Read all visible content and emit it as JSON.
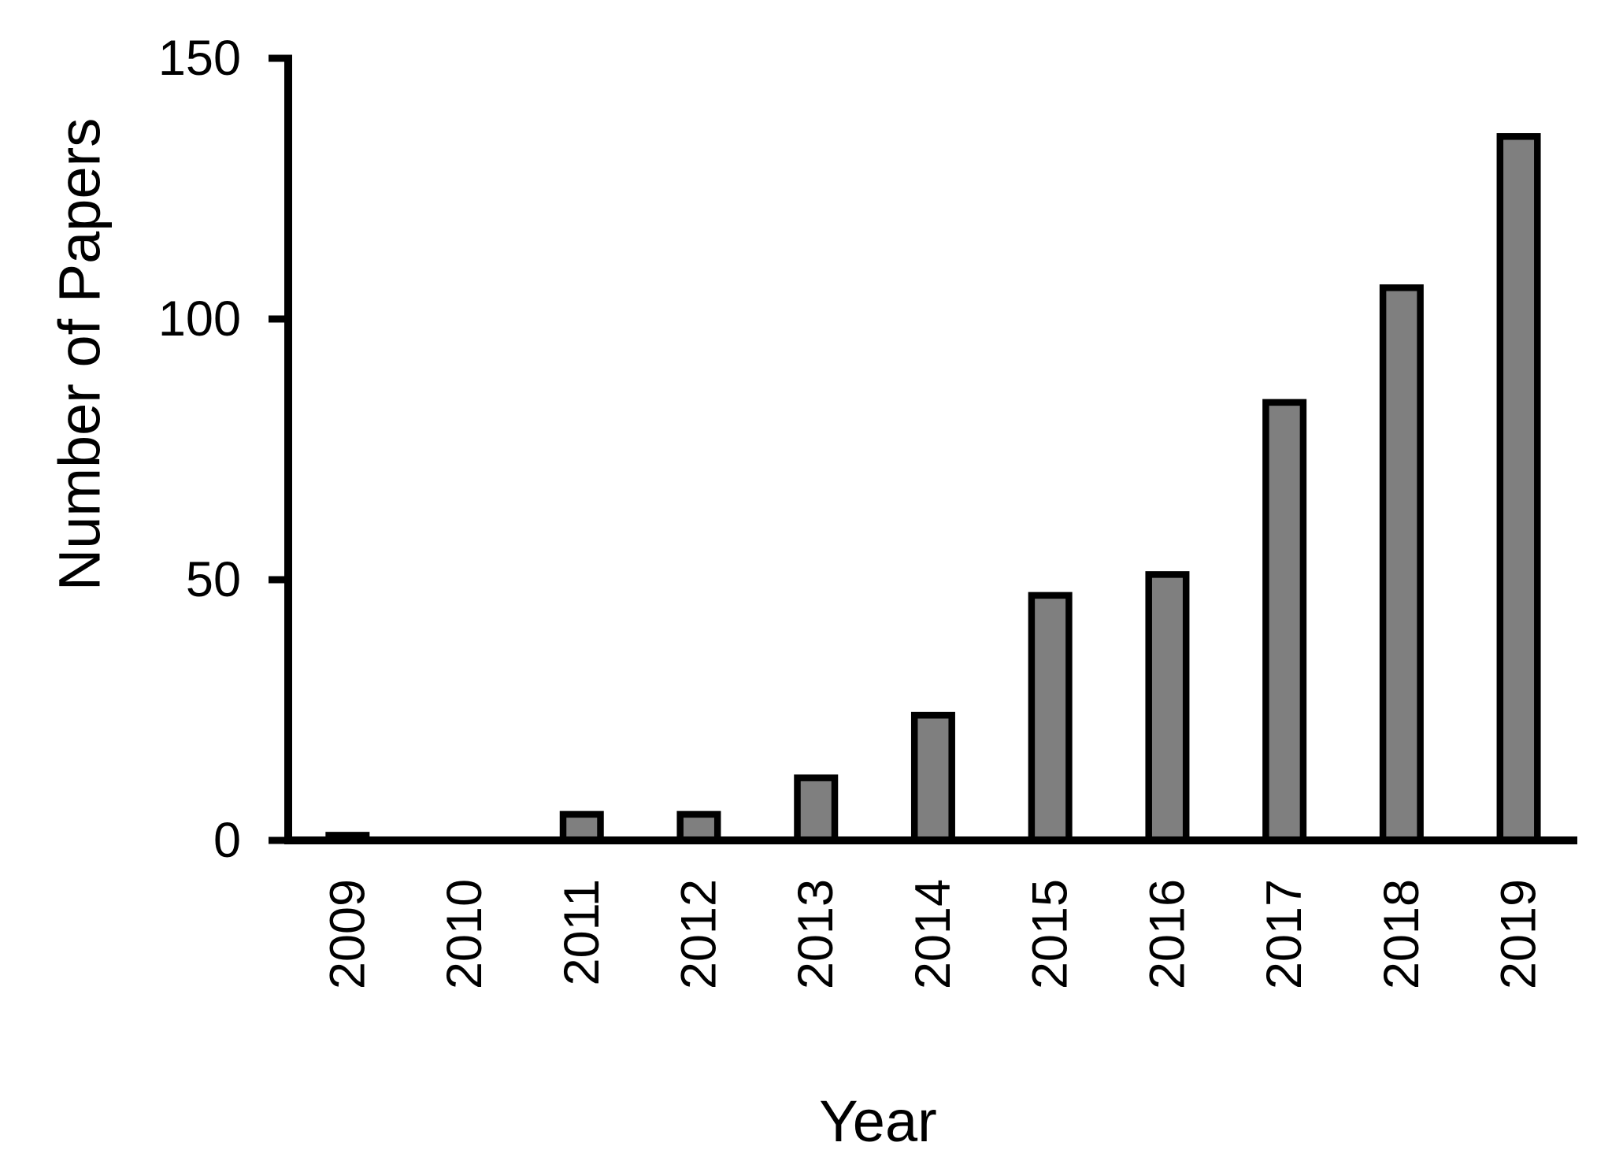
{
  "chart_data": {
    "type": "bar",
    "title": "",
    "categories": [
      "2009",
      "2010",
      "2011",
      "2012",
      "2013",
      "2014",
      "2015",
      "2016",
      "2017",
      "2018",
      "2019"
    ],
    "values": [
      1,
      0,
      5,
      5,
      12,
      24,
      47,
      51,
      84,
      106,
      135
    ],
    "xlabel": "Year",
    "ylabel": "Number of Papers",
    "yticks": [
      0,
      50,
      100,
      150
    ],
    "ylim": [
      0,
      150
    ],
    "grid": false,
    "legend": null,
    "colors": {
      "bar_fill": "#7f7f7f",
      "bar_outline": "#000000",
      "axis": "#000000",
      "text": "#000000",
      "background": "#ffffff"
    }
  }
}
